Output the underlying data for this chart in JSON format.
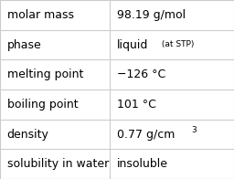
{
  "rows": [
    {
      "label": "molar mass",
      "value": "98.19 g/mol",
      "value_extra": null,
      "superscript": null
    },
    {
      "label": "phase",
      "value": "liquid",
      "value_extra": " (at STP)",
      "superscript": null
    },
    {
      "label": "melting point",
      "value": "−126 °C",
      "value_extra": null,
      "superscript": null
    },
    {
      "label": "boiling point",
      "value": "101 °C",
      "value_extra": null,
      "superscript": null
    },
    {
      "label": "density",
      "value": "0.77 g/cm",
      "value_extra": null,
      "superscript": "3"
    },
    {
      "label": "solubility in water",
      "value": "insoluble",
      "value_extra": null,
      "superscript": null
    }
  ],
  "col_split": 0.47,
  "background_color": "#ffffff",
  "line_color": "#cccccc",
  "label_fontsize": 9,
  "value_fontsize": 9,
  "extra_fontsize": 6.5,
  "text_color": "#000000",
  "font_family": "DejaVu Sans"
}
